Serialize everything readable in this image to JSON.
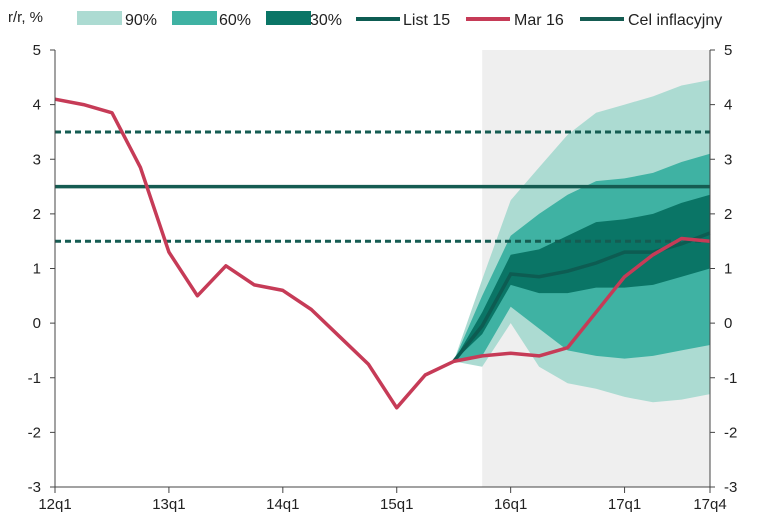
{
  "chart_data": {
    "type": "area",
    "ylabel": "r/r, %",
    "ylim": [
      -3,
      5
    ],
    "yticks": [
      -3,
      -2,
      -1,
      0,
      1,
      2,
      3,
      4,
      5
    ],
    "xlim": [
      0,
      23
    ],
    "xticks": [
      {
        "x": 0,
        "label": "12q1"
      },
      {
        "x": 4,
        "label": "13q1"
      },
      {
        "x": 8,
        "label": "14q1"
      },
      {
        "x": 12,
        "label": "15q1"
      },
      {
        "x": 16,
        "label": "16q1"
      },
      {
        "x": 20,
        "label": "17q1"
      },
      {
        "x": 23,
        "label": "17q4"
      }
    ],
    "forecast_shading_start": 15.0,
    "legend": {
      "band90": "90%",
      "band60": "60%",
      "band30": "30%",
      "list15": "List 15",
      "mar16": "Mar 16",
      "target": "Cel inflacyjny"
    },
    "colors": {
      "band90": "#acdbd2",
      "band60": "#3fb2a3",
      "band30": "#0a7566",
      "central": "#0d5c52",
      "mar16": "#c63b57",
      "target": "#155c52",
      "shading": "#efefef"
    },
    "inflation_target": {
      "value": 2.5,
      "band": [
        1.5,
        3.5
      ]
    },
    "fan": {
      "x": [
        14,
        15,
        16,
        17,
        18,
        19,
        20,
        21,
        22,
        23
      ],
      "p90_low": [
        -0.7,
        -0.8,
        0.0,
        -0.8,
        -1.1,
        -1.2,
        -1.35,
        -1.45,
        -1.4,
        -1.3
      ],
      "p60_low": [
        -0.7,
        -0.6,
        0.3,
        -0.1,
        -0.5,
        -0.6,
        -0.65,
        -0.6,
        -0.5,
        -0.4
      ],
      "p30_low": [
        -0.7,
        -0.2,
        0.7,
        0.55,
        0.55,
        0.65,
        0.65,
        0.7,
        0.85,
        1.0
      ],
      "central": [
        -0.7,
        -0.05,
        0.9,
        0.85,
        0.95,
        1.1,
        1.3,
        1.3,
        1.45,
        1.65
      ],
      "p30_high": [
        -0.7,
        0.2,
        1.25,
        1.35,
        1.6,
        1.85,
        1.9,
        2.0,
        2.2,
        2.35
      ],
      "p60_high": [
        -0.7,
        0.5,
        1.6,
        2.0,
        2.35,
        2.6,
        2.65,
        2.75,
        2.95,
        3.1
      ],
      "p90_high": [
        -0.7,
        0.8,
        2.25,
        2.85,
        3.45,
        3.85,
        4.0,
        4.15,
        4.35,
        4.45
      ]
    },
    "series": [
      {
        "name": "Mar 16",
        "x": [
          0,
          1,
          2,
          3,
          4,
          5,
          6,
          7,
          8,
          9,
          10,
          11,
          12,
          13,
          14,
          15,
          16,
          17,
          18,
          19,
          20,
          21,
          22,
          23
        ],
        "values": [
          4.1,
          4.0,
          3.85,
          2.85,
          1.3,
          0.5,
          1.05,
          0.7,
          0.6,
          0.25,
          -0.25,
          -0.75,
          -1.55,
          -0.95,
          -0.7,
          -0.6,
          -0.55,
          -0.6,
          -0.45,
          0.2,
          0.85,
          1.25,
          1.55,
          1.5
        ]
      }
    ]
  }
}
